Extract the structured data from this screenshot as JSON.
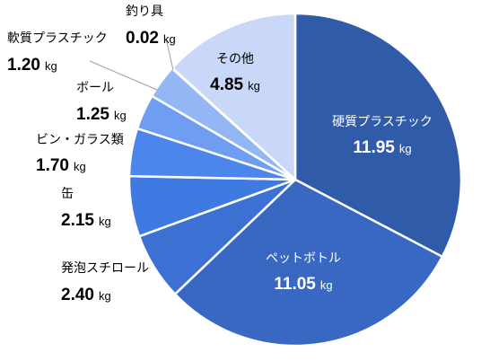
{
  "chart_data": {
    "type": "pie",
    "title": "",
    "unit": "kg",
    "slices": [
      {
        "label": "硬質プラスチック",
        "value": 11.95,
        "value_text": "11.95",
        "color": "#2F5BA8",
        "label_color": "#ffffff",
        "label_inside": true
      },
      {
        "label": "ペットボトル",
        "value": 11.05,
        "value_text": "11.05",
        "color": "#3868C2",
        "label_color": "#ffffff",
        "label_inside": true
      },
      {
        "label": "発泡スチロール",
        "value": 2.4,
        "value_text": "2.40",
        "color": "#3C70D2",
        "label_color": "#000000",
        "label_inside": false
      },
      {
        "label": "缶",
        "value": 2.15,
        "value_text": "2.15",
        "color": "#3F79E2",
        "label_color": "#000000",
        "label_inside": false
      },
      {
        "label": "ビン・ガラス類",
        "value": 1.7,
        "value_text": "1.70",
        "color": "#4B86EC",
        "label_color": "#000000",
        "label_inside": false
      },
      {
        "label": "ボール",
        "value": 1.25,
        "value_text": "1.25",
        "color": "#6E9DF1",
        "label_color": "#000000",
        "label_inside": false
      },
      {
        "label": "軟質プラスチック",
        "value": 1.2,
        "value_text": "1.20",
        "color": "#93B6F4",
        "label_color": "#000000",
        "label_inside": false
      },
      {
        "label": "釣り具",
        "value": 0.02,
        "value_text": "0.02",
        "color": "#A8C2F5",
        "label_color": "#000000",
        "label_inside": false
      },
      {
        "label": "その他",
        "value": 4.85,
        "value_text": "4.85",
        "color": "#C9D7F9",
        "label_color": "#000000",
        "label_inside": true
      }
    ],
    "legend": "none"
  }
}
